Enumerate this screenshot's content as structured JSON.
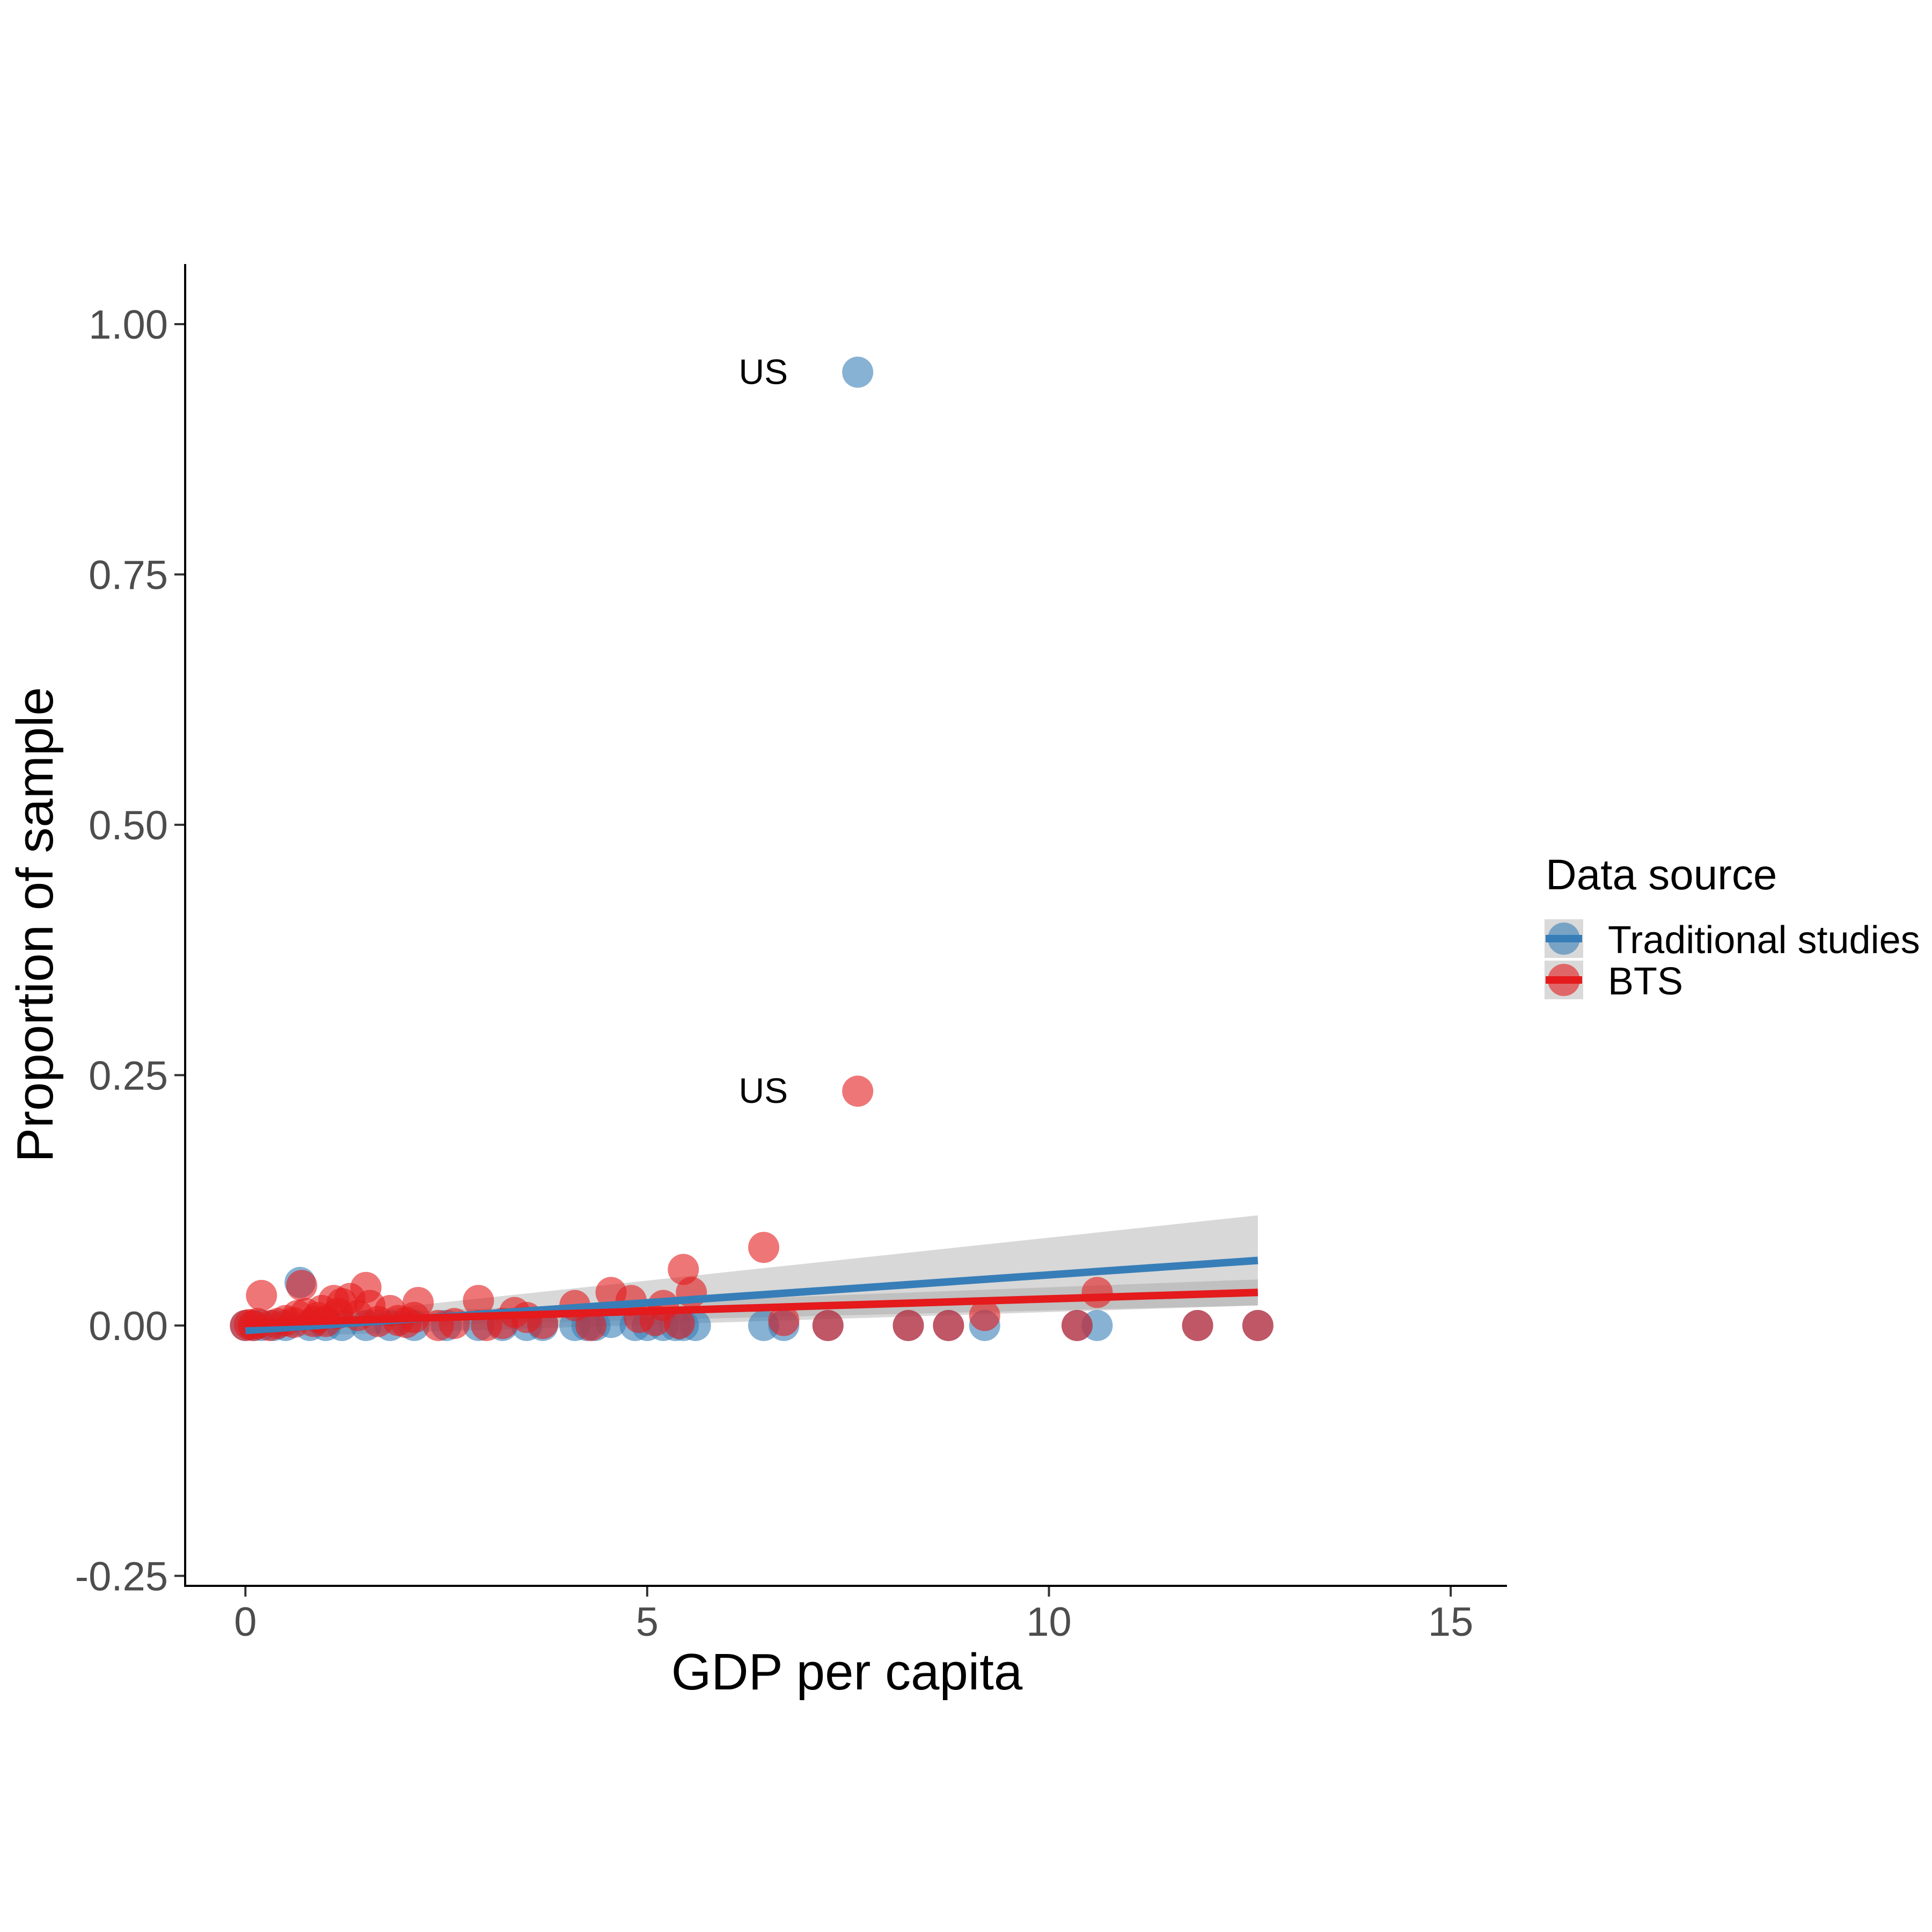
{
  "chart_data": {
    "type": "scatter",
    "title": "",
    "xlabel": "GDP per capita",
    "ylabel": "Proportion of sample",
    "xlim": [
      -0.75,
      15.7
    ],
    "ylim": [
      -0.26,
      1.06
    ],
    "x_ticks": [
      0,
      5,
      10,
      15
    ],
    "x_tick_labels": [
      "0",
      "5",
      "10",
      "15"
    ],
    "y_ticks": [
      -0.25,
      0,
      0.25,
      0.5,
      0.75,
      1.0
    ],
    "y_tick_labels": [
      "-0.25",
      "0.00",
      "0.25",
      "0.50",
      "0.75",
      "1.00"
    ],
    "grid": false,
    "legend": {
      "title": "Data source",
      "position": "right"
    },
    "series": [
      {
        "name": "Traditional studies",
        "color": "#377eb8",
        "trend": [
          [
            0,
            -0.005
          ],
          [
            12.6,
            0.065
          ]
        ],
        "band": {
          "lower": [
            [
              0,
              -0.012
            ],
            [
              12.6,
              0.02
            ]
          ],
          "upper": [
            [
              0,
              0.002
            ],
            [
              12.6,
              0.11
            ]
          ]
        },
        "points": [
          [
            0,
            0
          ],
          [
            0.1,
            0
          ],
          [
            0.2,
            0
          ],
          [
            0.35,
            0
          ],
          [
            0.5,
            0
          ],
          [
            0.68,
            0.043
          ],
          [
            0.8,
            0
          ],
          [
            1.0,
            0
          ],
          [
            1.2,
            0
          ],
          [
            1.5,
            0
          ],
          [
            1.8,
            0
          ],
          [
            2.1,
            0
          ],
          [
            2.5,
            0
          ],
          [
            2.9,
            0
          ],
          [
            3.2,
            0
          ],
          [
            3.5,
            0
          ],
          [
            3.7,
            0
          ],
          [
            4.1,
            0
          ],
          [
            4.25,
            0
          ],
          [
            4.35,
            0
          ],
          [
            4.55,
            0.003
          ],
          [
            4.85,
            0
          ],
          [
            5.0,
            0
          ],
          [
            5.2,
            0
          ],
          [
            5.35,
            0
          ],
          [
            5.45,
            0
          ],
          [
            5.6,
            0
          ],
          [
            6.45,
            0
          ],
          [
            6.7,
            0
          ],
          [
            7.25,
            0
          ],
          [
            7.62,
            0.952
          ],
          [
            8.25,
            0
          ],
          [
            8.75,
            0
          ],
          [
            9.2,
            0
          ],
          [
            10.35,
            0
          ],
          [
            10.6,
            0
          ],
          [
            11.85,
            0
          ],
          [
            12.6,
            0
          ]
        ]
      },
      {
        "name": "BTS",
        "color": "#e41a1c",
        "trend": [
          [
            0,
            0.002
          ],
          [
            12.6,
            0.033
          ]
        ],
        "band": {
          "lower": [
            [
              0,
              -0.004
            ],
            [
              12.6,
              0.02
            ]
          ],
          "upper": [
            [
              0,
              0.008
            ],
            [
              12.6,
              0.046
            ]
          ]
        },
        "points": [
          [
            0,
            0
          ],
          [
            0.05,
            0.001
          ],
          [
            0.1,
            0
          ],
          [
            0.15,
            0.002
          ],
          [
            0.2,
            0.03
          ],
          [
            0.3,
            0
          ],
          [
            0.4,
            0.002
          ],
          [
            0.5,
            0.005
          ],
          [
            0.6,
            0.003
          ],
          [
            0.65,
            0.01
          ],
          [
            0.7,
            0.04
          ],
          [
            0.75,
            0.012
          ],
          [
            0.85,
            0.004
          ],
          [
            0.9,
            0.008
          ],
          [
            0.95,
            0.015
          ],
          [
            1.0,
            0.004
          ],
          [
            1.1,
            0.025
          ],
          [
            1.15,
            0.012
          ],
          [
            1.2,
            0.022
          ],
          [
            1.3,
            0.027
          ],
          [
            1.4,
            0.01
          ],
          [
            1.5,
            0.038
          ],
          [
            1.55,
            0.02
          ],
          [
            1.65,
            0.004
          ],
          [
            1.8,
            0.015
          ],
          [
            1.9,
            0.005
          ],
          [
            2.0,
            0.003
          ],
          [
            2.1,
            0.008
          ],
          [
            2.15,
            0.023
          ],
          [
            2.4,
            0
          ],
          [
            2.6,
            0.002
          ],
          [
            2.9,
            0.025
          ],
          [
            3.0,
            0
          ],
          [
            3.2,
            0.002
          ],
          [
            3.35,
            0.013
          ],
          [
            3.5,
            0.008
          ],
          [
            3.7,
            0.002
          ],
          [
            4.1,
            0.02
          ],
          [
            4.3,
            0
          ],
          [
            4.55,
            0.033
          ],
          [
            4.8,
            0.025
          ],
          [
            4.9,
            0.008
          ],
          [
            5.1,
            0.005
          ],
          [
            5.2,
            0.02
          ],
          [
            5.4,
            0.002
          ],
          [
            5.45,
            0.056
          ],
          [
            5.55,
            0.033
          ],
          [
            6.45,
            0.078
          ],
          [
            6.7,
            0.005
          ],
          [
            7.25,
            0
          ],
          [
            7.62,
            0.234
          ],
          [
            8.25,
            0
          ],
          [
            8.75,
            0
          ],
          [
            9.2,
            0.01
          ],
          [
            10.35,
            0
          ],
          [
            10.6,
            0.033
          ],
          [
            11.85,
            0
          ],
          [
            12.6,
            0
          ]
        ]
      }
    ],
    "annotations": [
      {
        "text": "US",
        "x": 7.62,
        "y": 0.952,
        "series": "Traditional studies"
      },
      {
        "text": "US",
        "x": 7.62,
        "y": 0.234,
        "series": "BTS"
      }
    ]
  }
}
